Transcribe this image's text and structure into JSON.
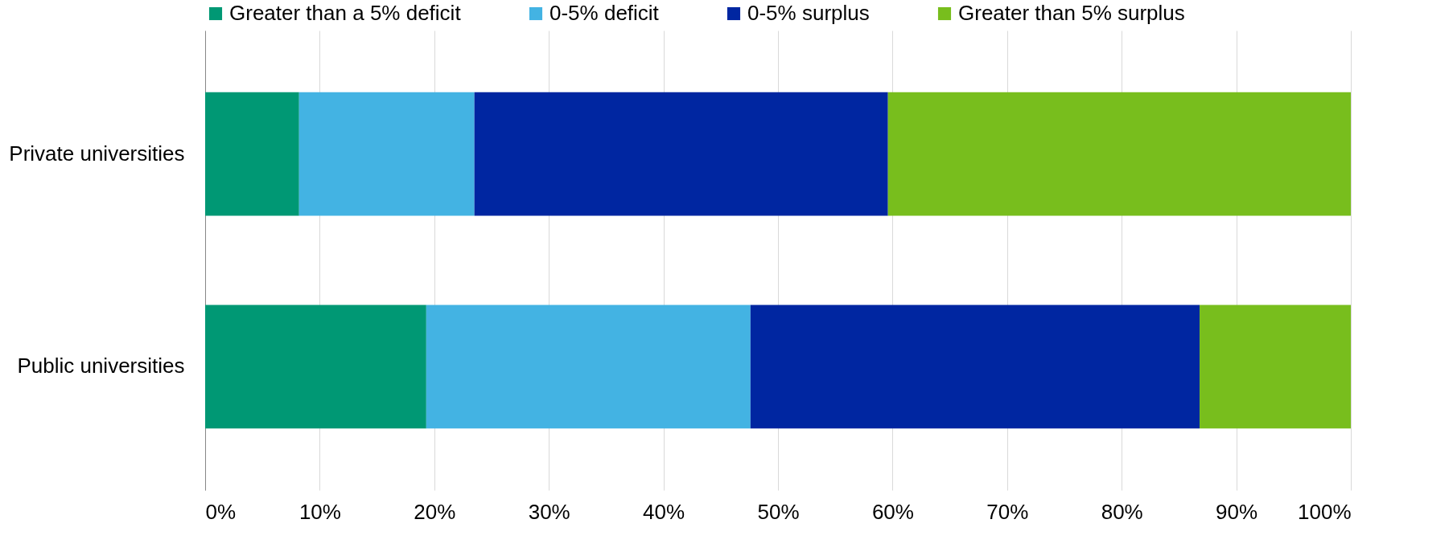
{
  "chart_data": {
    "type": "bar",
    "orientation": "horizontal",
    "stacked": true,
    "categories": [
      "Private universities",
      "Public universities"
    ],
    "series": [
      {
        "name": "Greater than a 5% deficit",
        "color": "#009874",
        "values": [
          8.2,
          19.3
        ]
      },
      {
        "name": "0-5% deficit",
        "color": "#43b3e3",
        "values": [
          15.3,
          28.3
        ]
      },
      {
        "name": "0-5% surplus",
        "color": "#0026a1",
        "values": [
          36.1,
          39.2
        ]
      },
      {
        "name": "Greater than 5% surplus",
        "color": "#78be1d",
        "values": [
          40.4,
          13.2
        ]
      }
    ],
    "xlim": [
      0,
      100
    ],
    "xticks": [
      {
        "value": 0,
        "label": "0%"
      },
      {
        "value": 10,
        "label": "10%"
      },
      {
        "value": 20,
        "label": "20%"
      },
      {
        "value": 30,
        "label": "30%"
      },
      {
        "value": 40,
        "label": "40%"
      },
      {
        "value": 50,
        "label": "50%"
      },
      {
        "value": 60,
        "label": "60%"
      },
      {
        "value": 70,
        "label": "70%"
      },
      {
        "value": 80,
        "label": "80%"
      },
      {
        "value": 90,
        "label": "90%"
      },
      {
        "value": 100,
        "label": "100%"
      }
    ],
    "grid": "x",
    "legend": "top"
  }
}
